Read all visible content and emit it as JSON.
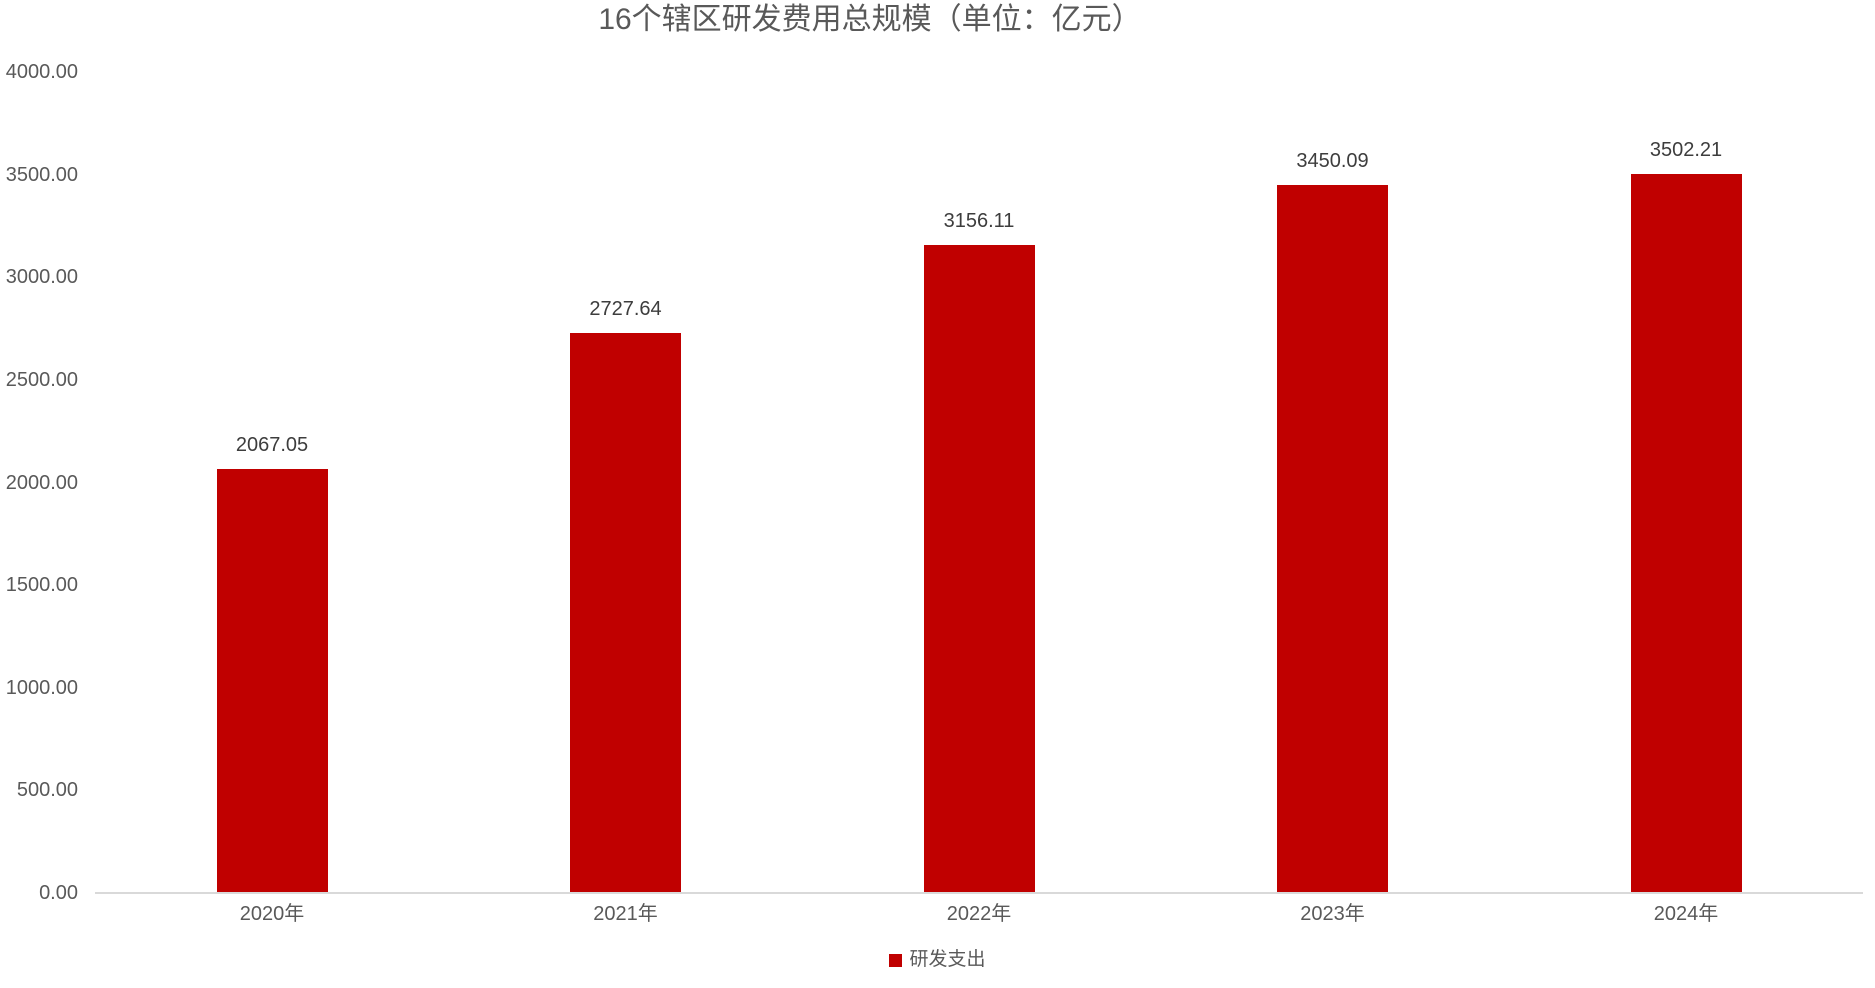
{
  "chart_data": {
    "type": "bar",
    "title": "16个辖区研发费用总规模（单位：亿元）",
    "categories": [
      "2020年",
      "2021年",
      "2022年",
      "2023年",
      "2024年"
    ],
    "series": [
      {
        "name": "研发支出",
        "values": [
          2067.05,
          2727.64,
          3156.11,
          3450.09,
          3502.21
        ]
      }
    ],
    "data_labels": [
      "2067.05",
      "2727.64",
      "3156.11",
      "3450.09",
      "3502.21"
    ],
    "y_ticks": [
      "4000.00",
      "3500.00",
      "3000.00",
      "2500.00",
      "2000.00",
      "1500.00",
      "1000.00",
      "500.00",
      "0.00"
    ],
    "ylim": [
      0,
      4000
    ],
    "ytick_interval": 500,
    "xlabel": "",
    "ylabel": "",
    "grid": false,
    "legend_position": "bottom",
    "colors": {
      "bar": "#c00000",
      "axis_line": "#d9d9d9",
      "axis_text": "#595959",
      "data_label_text": "#3d3d3d",
      "title_text": "#595959"
    }
  }
}
